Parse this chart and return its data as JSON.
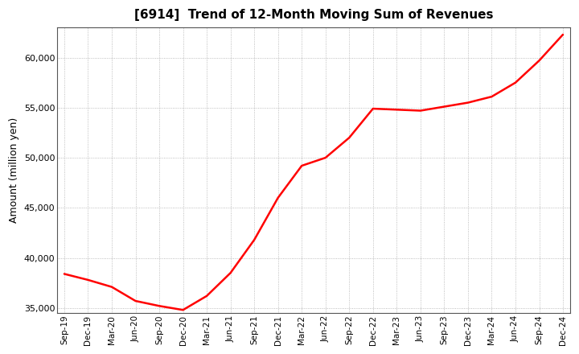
{
  "title": "[6914]  Trend of 12-Month Moving Sum of Revenues",
  "ylabel": "Amount (million yen)",
  "line_color": "#FF0000",
  "line_width": 1.8,
  "background_color": "#FFFFFF",
  "plot_bg_color": "#FFFFFF",
  "grid_color": "#888888",
  "ylim": [
    34500,
    63000
  ],
  "yticks": [
    35000,
    40000,
    45000,
    50000,
    55000,
    60000
  ],
  "x_labels": [
    "Sep-19",
    "Dec-19",
    "Mar-20",
    "Jun-20",
    "Sep-20",
    "Dec-20",
    "Mar-21",
    "Jun-21",
    "Sep-21",
    "Dec-21",
    "Mar-22",
    "Jun-22",
    "Sep-22",
    "Dec-22",
    "Mar-23",
    "Jun-23",
    "Sep-23",
    "Dec-23",
    "Mar-24",
    "Jun-24",
    "Sep-24",
    "Dec-24"
  ],
  "values": [
    38400,
    37800,
    37100,
    35700,
    35200,
    34800,
    36200,
    38500,
    41800,
    46000,
    49200,
    50000,
    52000,
    54900,
    54800,
    54700,
    55100,
    55500,
    56100,
    57500,
    59700,
    62300
  ]
}
